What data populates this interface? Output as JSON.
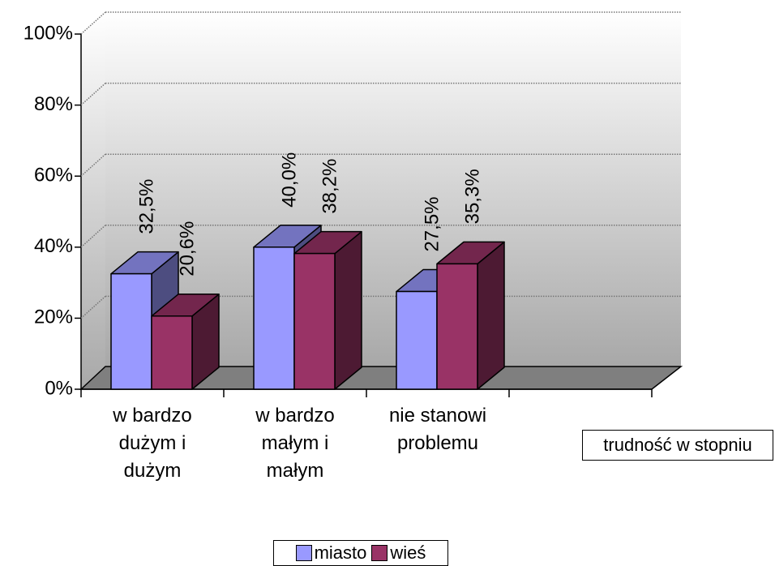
{
  "chart_data": {
    "type": "bar3d",
    "categories": [
      "w bardzo dużym i dużym",
      "w bardzo małym i małym",
      "nie stanowi problemu",
      null
    ],
    "series": [
      {
        "name": "miasto",
        "color": "#9999ff",
        "values": [
          32.5,
          40.0,
          27.5,
          null
        ],
        "value_labels": [
          "32,5%",
          "40,0%",
          "27,5%",
          null
        ]
      },
      {
        "name": "wieś",
        "color": "#993366",
        "values": [
          20.6,
          38.2,
          35.3,
          null
        ],
        "value_labels": [
          "20,6%",
          "38,2%",
          "35,3%",
          null
        ]
      }
    ],
    "x_label": "trudność w stopniu",
    "ylim": [
      0,
      100
    ],
    "yticks": [
      {
        "value": 0,
        "label": "0%"
      },
      {
        "value": 20,
        "label": "20%"
      },
      {
        "value": 40,
        "label": "40%"
      },
      {
        "value": 60,
        "label": "60%"
      },
      {
        "value": 80,
        "label": "80%"
      },
      {
        "value": 100,
        "label": "100%"
      }
    ],
    "grid": true,
    "legend": "bottom"
  }
}
